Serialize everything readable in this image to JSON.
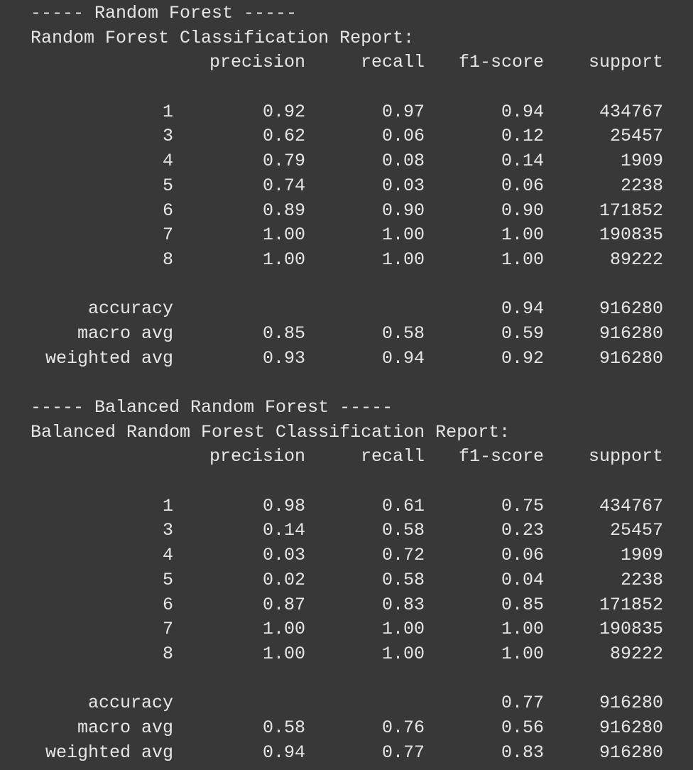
{
  "reports": [
    {
      "banner": "----- Random Forest -----",
      "title": "Random Forest Classification Report:",
      "headers": {
        "precision": "precision",
        "recall": "recall",
        "f1": "f1-score",
        "support": "support"
      },
      "rows": [
        {
          "label": "1",
          "precision": "0.92",
          "recall": "0.97",
          "f1": "0.94",
          "support": "434767"
        },
        {
          "label": "3",
          "precision": "0.62",
          "recall": "0.06",
          "f1": "0.12",
          "support": "25457"
        },
        {
          "label": "4",
          "precision": "0.79",
          "recall": "0.08",
          "f1": "0.14",
          "support": "1909"
        },
        {
          "label": "5",
          "precision": "0.74",
          "recall": "0.03",
          "f1": "0.06",
          "support": "2238"
        },
        {
          "label": "6",
          "precision": "0.89",
          "recall": "0.90",
          "f1": "0.90",
          "support": "171852"
        },
        {
          "label": "7",
          "precision": "1.00",
          "recall": "1.00",
          "f1": "1.00",
          "support": "190835"
        },
        {
          "label": "8",
          "precision": "1.00",
          "recall": "1.00",
          "f1": "1.00",
          "support": "89222"
        }
      ],
      "summary": [
        {
          "label": "accuracy",
          "precision": "",
          "recall": "",
          "f1": "0.94",
          "support": "916280"
        },
        {
          "label": "macro avg",
          "precision": "0.85",
          "recall": "0.58",
          "f1": "0.59",
          "support": "916280"
        },
        {
          "label": "weighted avg",
          "precision": "0.93",
          "recall": "0.94",
          "f1": "0.92",
          "support": "916280"
        }
      ]
    },
    {
      "banner": "----- Balanced Random Forest -----",
      "title": "Balanced Random Forest Classification Report:",
      "headers": {
        "precision": "precision",
        "recall": "recall",
        "f1": "f1-score",
        "support": "support"
      },
      "rows": [
        {
          "label": "1",
          "precision": "0.98",
          "recall": "0.61",
          "f1": "0.75",
          "support": "434767"
        },
        {
          "label": "3",
          "precision": "0.14",
          "recall": "0.58",
          "f1": "0.23",
          "support": "25457"
        },
        {
          "label": "4",
          "precision": "0.03",
          "recall": "0.72",
          "f1": "0.06",
          "support": "1909"
        },
        {
          "label": "5",
          "precision": "0.02",
          "recall": "0.58",
          "f1": "0.04",
          "support": "2238"
        },
        {
          "label": "6",
          "precision": "0.87",
          "recall": "0.83",
          "f1": "0.85",
          "support": "171852"
        },
        {
          "label": "7",
          "precision": "1.00",
          "recall": "1.00",
          "f1": "1.00",
          "support": "190835"
        },
        {
          "label": "8",
          "precision": "1.00",
          "recall": "1.00",
          "f1": "1.00",
          "support": "89222"
        }
      ],
      "summary": [
        {
          "label": "accuracy",
          "precision": "",
          "recall": "",
          "f1": "0.77",
          "support": "916280"
        },
        {
          "label": "macro avg",
          "precision": "0.58",
          "recall": "0.76",
          "f1": "0.56",
          "support": "916280"
        },
        {
          "label": "weighted avg",
          "precision": "0.94",
          "recall": "0.77",
          "f1": "0.83",
          "support": "916280"
        }
      ]
    }
  ]
}
